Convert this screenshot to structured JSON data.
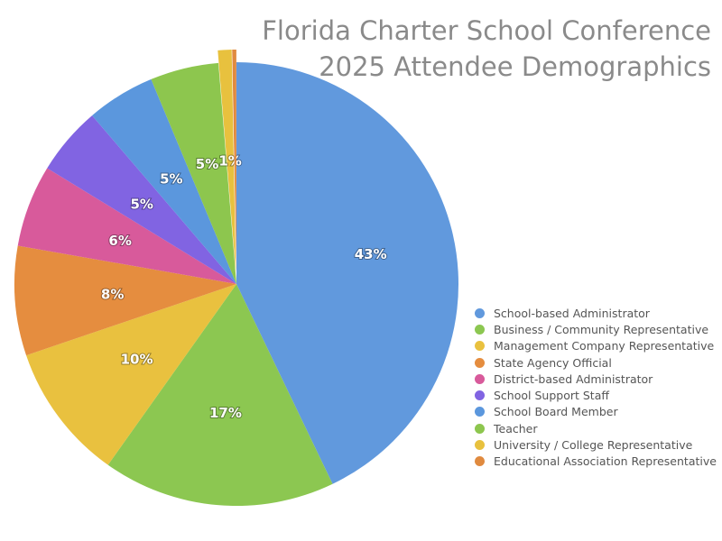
{
  "chart_data": {
    "type": "pie",
    "title_lines": [
      "Florida Charter School Conference",
      "2025 Attendee Demographics"
    ],
    "legend_position": "bottom-right",
    "slices": [
      {
        "name": "School-based Administrator",
        "value": 43,
        "label": "43%",
        "color": "#6199dd"
      },
      {
        "name": "Business / Community Representative",
        "value": 17,
        "label": "17%",
        "color": "#8cc751"
      },
      {
        "name": "Management Company Representative",
        "value": 10,
        "label": "10%",
        "color": "#e9c13f"
      },
      {
        "name": "State Agency Official",
        "value": 8,
        "label": "8%",
        "color": "#e58d3f"
      },
      {
        "name": "District-based Administrator",
        "value": 6,
        "label": "6%",
        "color": "#d85a9b"
      },
      {
        "name": "School Support Staff",
        "value": 5,
        "label": "5%",
        "color": "#8164e2"
      },
      {
        "name": "School Board Member",
        "value": 5,
        "label": "5%",
        "color": "#5b97dd"
      },
      {
        "name": "Teacher",
        "value": 5,
        "label": "5%",
        "color": "#8dc64e"
      },
      {
        "name": "University / College Representative",
        "value": 1,
        "label": "1%",
        "color": "#e8c13e"
      },
      {
        "name": "Educational Association Representative",
        "value": 0.3,
        "label": "",
        "color": "#e08a3f"
      }
    ]
  }
}
